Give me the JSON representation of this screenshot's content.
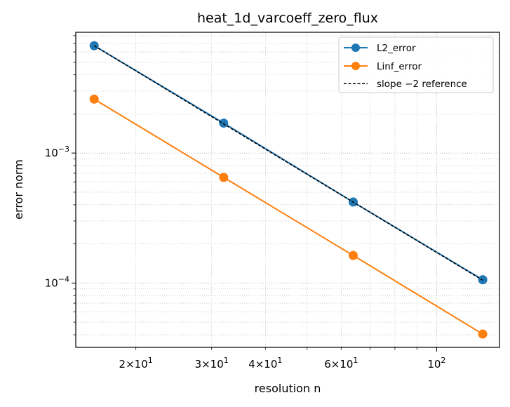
{
  "chart_data": {
    "type": "line",
    "title": "heat_1d_varcoeff_zero_flux",
    "xlabel": "resolution n",
    "ylabel": "error norm",
    "xscale": "log",
    "yscale": "log",
    "xlim": [
      14.5,
      140
    ],
    "ylim": [
      3.2e-05,
      0.0085
    ],
    "grid": "on (major and minor, dotted)",
    "legend_position": "top-right",
    "x": [
      16,
      32,
      64,
      128
    ],
    "series": [
      {
        "name": "L2_error",
        "values": [
          0.0067,
          0.0017,
          0.00042,
          0.000106
        ],
        "color": "#1f77b4",
        "marker": "circle",
        "line": "solid"
      },
      {
        "name": "Linf_error",
        "values": [
          0.0026,
          0.00065,
          0.000163,
          4.05e-05
        ],
        "color": "#ff7f0e",
        "marker": "circle",
        "line": "solid"
      },
      {
        "name": "slope −2 reference",
        "values": [
          0.0067,
          0.001675,
          0.000419,
          0.000105
        ],
        "color": "#000000",
        "marker": "none",
        "line": "dashed"
      }
    ],
    "x_tick_labels": [
      {
        "value": 20,
        "base": "2×10",
        "exp": "1"
      },
      {
        "value": 30,
        "base": "3×10",
        "exp": "1"
      },
      {
        "value": 40,
        "base": "4×10",
        "exp": "1"
      },
      {
        "value": 60,
        "base": "6×10",
        "exp": "1"
      },
      {
        "value": 100,
        "base": "10",
        "exp": "2"
      }
    ],
    "y_tick_labels": [
      {
        "value": 0.001,
        "base": "10",
        "exp": "−3"
      },
      {
        "value": 0.0001,
        "base": "10",
        "exp": "−4"
      }
    ]
  }
}
